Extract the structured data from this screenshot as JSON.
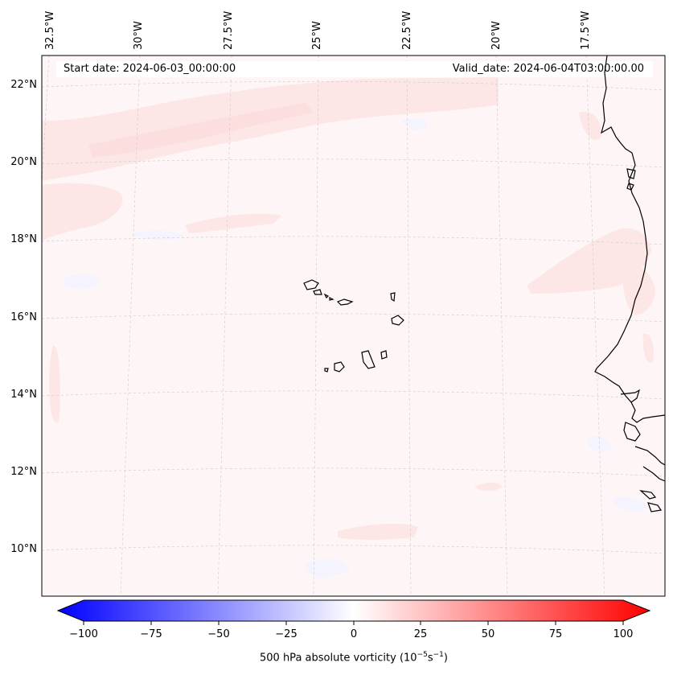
{
  "header": {
    "start_date": "Start date: 2024-06-03_00:00:00",
    "valid_date": "Valid_date: 2024-06-04T03:00:00.00"
  },
  "map": {
    "lon_labels": [
      "32.5°W",
      "30°W",
      "27.5°W",
      "25°W",
      "22.5°W",
      "20°W",
      "17.5°W"
    ],
    "lat_labels": [
      "22°N",
      "20°N",
      "18°N",
      "16°N",
      "14°N",
      "12°N",
      "10°N"
    ],
    "colors": {
      "background": "#fef6f6",
      "light_red": "#fde6e6",
      "mid_red": "#fcdede",
      "light_blue": "#f3f4fe",
      "coastline": "#000000",
      "gridline": "#c8c8c8"
    }
  },
  "colorbar": {
    "tick_labels": [
      "−100",
      "−75",
      "−50",
      "−25",
      "0",
      "25",
      "50",
      "75",
      "100"
    ],
    "label_main": "500 hPa absolute vorticity (10",
    "label_exp1": "−5",
    "label_mid": "s",
    "label_exp2": "−1",
    "label_end": ")",
    "min_color": "#0000ff",
    "mid_color": "#ffffff",
    "max_color": "#ff0000"
  }
}
